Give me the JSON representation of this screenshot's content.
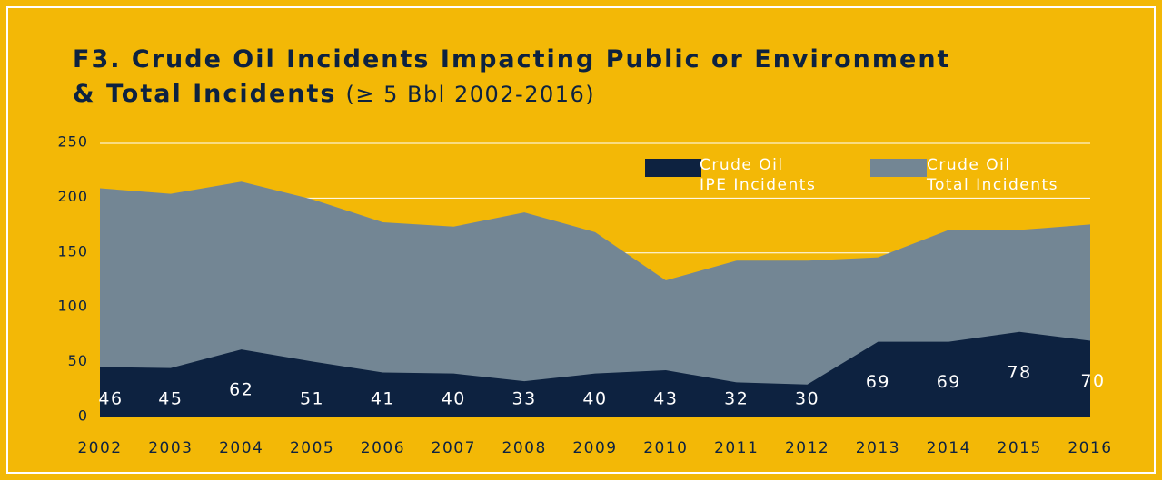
{
  "chart_data": {
    "type": "area",
    "title_line1": "F3. Crude Oil Incidents Impacting Public or Environment",
    "title_line2": "& Total Incidents",
    "subtitle": "(≥ 5 Bbl 2002-2016)",
    "categories": [
      "2002",
      "2003",
      "2004",
      "2005",
      "2006",
      "2007",
      "2008",
      "2009",
      "2010",
      "2011",
      "2012",
      "2013",
      "2014",
      "2015",
      "2016"
    ],
    "series": [
      {
        "name": "Crude Oil\nTotal Incidents",
        "color": "#738694",
        "values": [
          209,
          204,
          215,
          199,
          178,
          174,
          187,
          169,
          125,
          143,
          143,
          146,
          171,
          171,
          176
        ]
      },
      {
        "name": "Crude Oil\nIPE Incidents",
        "color": "#0d2240",
        "values": [
          46,
          45,
          62,
          51,
          41,
          40,
          33,
          40,
          43,
          32,
          30,
          69,
          69,
          78,
          70
        ]
      }
    ],
    "ylim": [
      0,
      250
    ],
    "yticks": [
      0,
      50,
      100,
      150,
      200,
      250
    ],
    "grid": true
  }
}
